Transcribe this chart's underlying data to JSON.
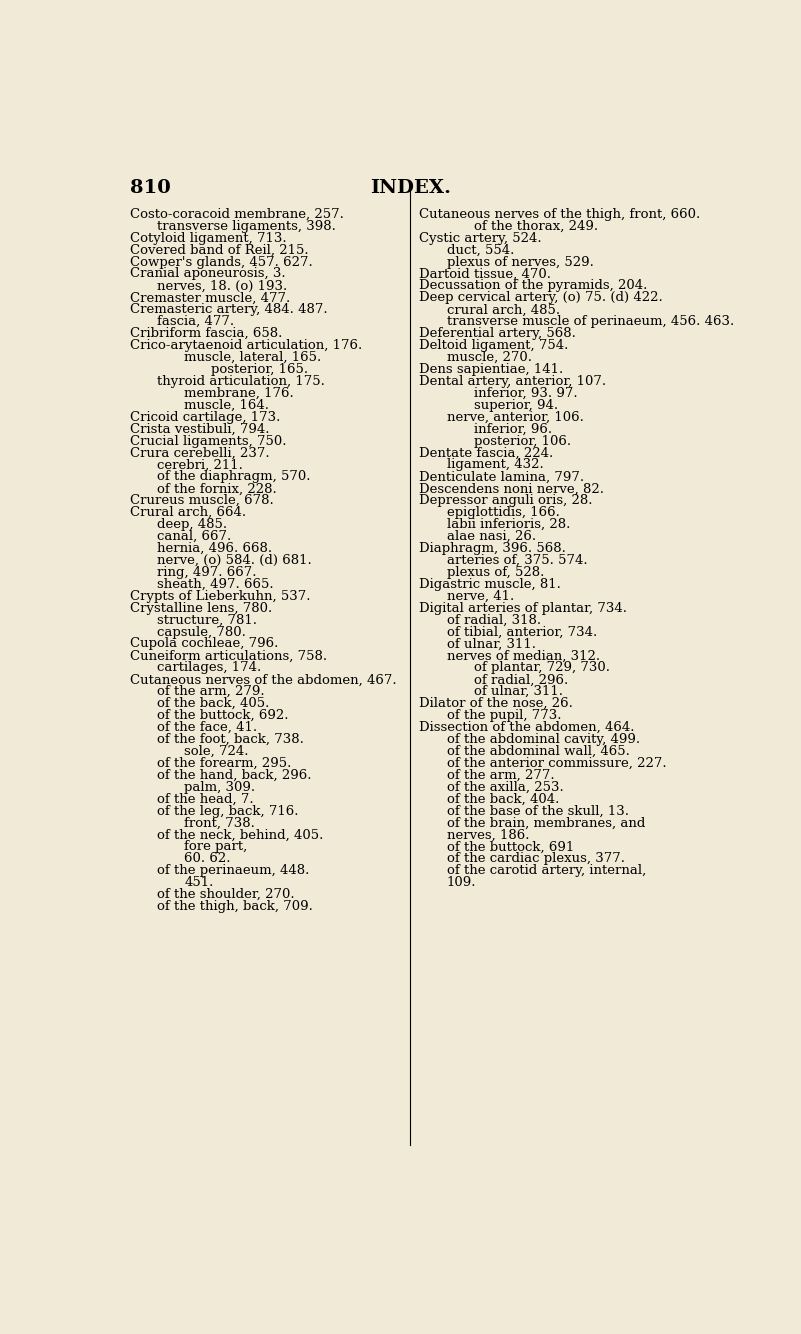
{
  "background_color": "#f0ead6",
  "page_number": "810",
  "header_title": "INDEX.",
  "font_size": 9.5,
  "header_font_size": 14,
  "left_column": [
    [
      "Costo-coracoid membrane, 257.",
      0
    ],
    [
      "transverse ligaments, 398.",
      1
    ],
    [
      "Cotyloid ligament, 713.",
      0
    ],
    [
      "Covered band of Reil, 215.",
      0
    ],
    [
      "Cowper's glands, 457. 627.",
      0
    ],
    [
      "Cranial aponeurosis, 3.",
      0
    ],
    [
      "nerves, 18. (o) 193.",
      1
    ],
    [
      "Cremaster muscle, 477.",
      0
    ],
    [
      "Cremasteric artery, 484. 487.",
      0
    ],
    [
      "fascia, 477.",
      1
    ],
    [
      "Cribriform fascia, 658.",
      0
    ],
    [
      "Crico-arytaenoid articulation, 176.",
      0
    ],
    [
      "muscle, lateral, 165.",
      2
    ],
    [
      "posterior, 165.",
      3
    ],
    [
      "thyroid articulation, 175.",
      1
    ],
    [
      "membrane, 176.",
      2
    ],
    [
      "muscle, 164.",
      2
    ],
    [
      "Cricoid cartilage, 173.",
      0
    ],
    [
      "Crista vestibuli, 794.",
      0
    ],
    [
      "Crucial ligaments, 750.",
      0
    ],
    [
      "Crura cerebelli, 237.",
      0
    ],
    [
      "cerebri, 211.",
      1
    ],
    [
      "of the diaphragm, 570.",
      1
    ],
    [
      "of the fornix, 228.",
      1
    ],
    [
      "Crureus muscle, 678.",
      0
    ],
    [
      "Crural arch, 664.",
      0
    ],
    [
      "deep, 485.",
      1
    ],
    [
      "canal, 667.",
      1
    ],
    [
      "hernia, 496. 668.",
      1
    ],
    [
      "nerve, (o) 584. (d) 681.",
      1
    ],
    [
      "ring, 497. 667.",
      1
    ],
    [
      "sheath, 497. 665.",
      1
    ],
    [
      "Crypts of Lieberkuhn, 537.",
      0
    ],
    [
      "Crystalline lens, 780.",
      0
    ],
    [
      "structure, 781.",
      1
    ],
    [
      "capsule, 780.",
      1
    ],
    [
      "Cupola cochleae, 796.",
      0
    ],
    [
      "Cuneiform articulations, 758.",
      0
    ],
    [
      "cartilages, 174.",
      1
    ],
    [
      "Cutaneous nerves of the abdomen, 467.",
      0
    ],
    [
      "of the arm, 279.",
      1
    ],
    [
      "of the back, 405.",
      1
    ],
    [
      "of the buttock, 692.",
      1
    ],
    [
      "of the face, 41.",
      1
    ],
    [
      "of the foot, back, 738.",
      1
    ],
    [
      "sole, 724.",
      2
    ],
    [
      "of the forearm, 295.",
      1
    ],
    [
      "of the hand, back, 296.",
      1
    ],
    [
      "palm, 309.",
      2
    ],
    [
      "of the head, 7.",
      1
    ],
    [
      "of the leg, back, 716.",
      1
    ],
    [
      "front, 738.",
      2
    ],
    [
      "of the neck, behind, 405.",
      1
    ],
    [
      "fore part,",
      2
    ],
    [
      "60. 62.",
      2
    ],
    [
      "of the perinaeum, 448.",
      1
    ],
    [
      "451.",
      2
    ],
    [
      "of the shoulder, 270.",
      1
    ],
    [
      "of the thigh, back, 709.",
      1
    ]
  ],
  "right_column": [
    [
      "Cutaneous nerves of the thigh, front, 660.",
      0
    ],
    [
      "of the thorax, 249.",
      2
    ],
    [
      "Cystic artery, 524.",
      0
    ],
    [
      "duct, 554.",
      1
    ],
    [
      "plexus of nerves, 529.",
      1
    ],
    [
      "Dartoid tissue, 470.",
      0
    ],
    [
      "Decussation of the pyramids, 204.",
      0
    ],
    [
      "Deep cervical artery, (o) 75. (d) 422.",
      0
    ],
    [
      "crural arch, 485.",
      1
    ],
    [
      "transverse muscle of perinaeum, 456. 463.",
      1
    ],
    [
      "Deferential artery, 568.",
      0
    ],
    [
      "Deltoid ligament, 754.",
      0
    ],
    [
      "muscle, 270.",
      1
    ],
    [
      "Dens sapientiae, 141.",
      0
    ],
    [
      "Dental artery, anterior, 107.",
      0
    ],
    [
      "inferior, 93. 97.",
      2
    ],
    [
      "superior, 94.",
      2
    ],
    [
      "nerve, anterior, 106.",
      1
    ],
    [
      "inferior, 96.",
      2
    ],
    [
      "posterior, 106.",
      2
    ],
    [
      "Dentate fascia, 224.",
      0
    ],
    [
      "ligament, 432.",
      1
    ],
    [
      "Denticulate lamina, 797.",
      0
    ],
    [
      "Descendens noni nerve, 82.",
      0
    ],
    [
      "Depressor anguli oris, 28.",
      0
    ],
    [
      "epiglottidis, 166.",
      1
    ],
    [
      "labii inferioris, 28.",
      1
    ],
    [
      "alae nasi, 26.",
      1
    ],
    [
      "Diaphragm, 396. 568.",
      0
    ],
    [
      "arteries of, 375. 574.",
      1
    ],
    [
      "plexus of, 528.",
      1
    ],
    [
      "Digastric muscle, 81.",
      0
    ],
    [
      "nerve, 41.",
      1
    ],
    [
      "Digital arteries of plantar, 734.",
      0
    ],
    [
      "of radial, 318.",
      1
    ],
    [
      "of tibial, anterior, 734.",
      1
    ],
    [
      "of ulnar, 311.",
      1
    ],
    [
      "nerves of median, 312.",
      1
    ],
    [
      "of plantar, 729, 730.",
      2
    ],
    [
      "of radial, 296.",
      2
    ],
    [
      "of ulnar, 311.",
      2
    ],
    [
      "Dilator of the nose, 26.",
      0
    ],
    [
      "of the pupil, 773.",
      1
    ],
    [
      "Dissection of the abdomen, 464.",
      0
    ],
    [
      "of the abdominal cavity, 499.",
      1
    ],
    [
      "of the abdominal wall, 465.",
      1
    ],
    [
      "of the anterior commissure, 227.",
      1
    ],
    [
      "of the arm, 277.",
      1
    ],
    [
      "of the axilla, 253.",
      1
    ],
    [
      "of the back, 404.",
      1
    ],
    [
      "of the base of the skull, 13.",
      1
    ],
    [
      "of the brain, membranes, and",
      1
    ],
    [
      "nerves, 186.",
      1
    ],
    [
      "of the buttock, 691",
      1
    ],
    [
      "of the cardiac plexus, 377.",
      1
    ],
    [
      "of the carotid artery, internal,",
      1
    ],
    [
      "109.",
      1
    ]
  ],
  "indent_sizes": [
    0,
    40,
    80,
    120
  ]
}
